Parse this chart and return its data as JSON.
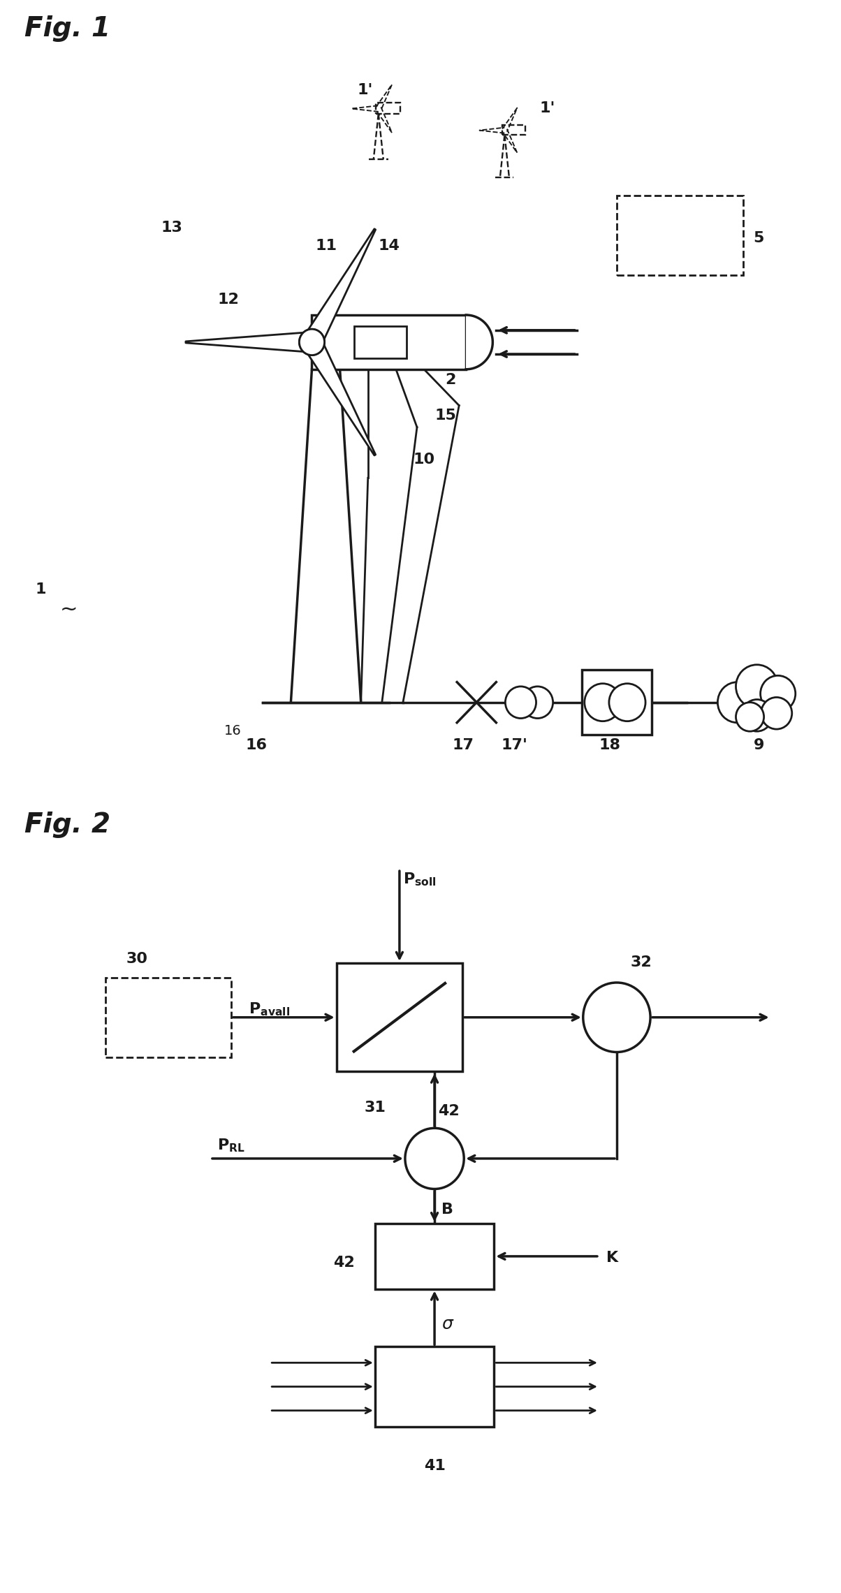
{
  "fig1_label": "Fig. 1",
  "fig2_label": "Fig. 2",
  "background_color": "#ffffff",
  "line_color": "#1a1a1a",
  "label_fontsize": 16,
  "fig_label_fontsize": 28,
  "fig_label_fontweight": "bold",
  "lw": 2.0
}
